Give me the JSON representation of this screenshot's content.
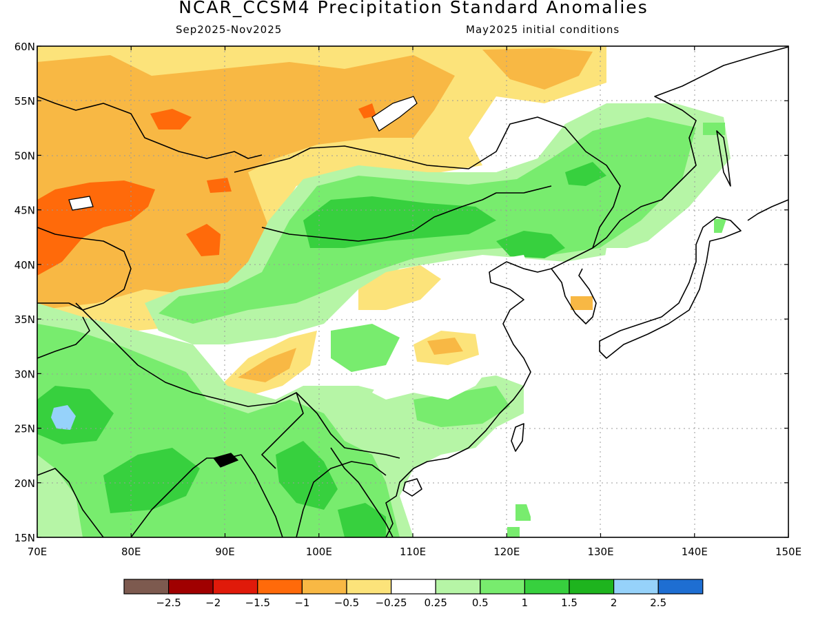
{
  "title": "NCAR_CCSM4 Precipitation Standard Anomalies",
  "period": "Sep2025-Nov2025",
  "init": "May2025 initial conditions",
  "map": {
    "lon_ticks": [
      "70E",
      "80E",
      "90E",
      "100E",
      "110E",
      "120E",
      "130E",
      "140E",
      "150E"
    ],
    "lat_ticks": [
      "60N",
      "55N",
      "50N",
      "45N",
      "40N",
      "35N",
      "30N",
      "25N",
      "20N",
      "15N"
    ]
  },
  "legend": {
    "colors": [
      "#7d5a4f",
      "#a00000",
      "#e01a0a",
      "#ff6a0a",
      "#f8b844",
      "#fce37a",
      "#ffffff",
      "#b6f5a6",
      "#78ec6e",
      "#37d03e",
      "#1eb41e",
      "#96d2fa",
      "#1e6ed2"
    ],
    "labels": [
      "−2.5",
      "−2",
      "−1.5",
      "−1",
      "−0.5",
      "−0.25",
      "0.25",
      "0.5",
      "1",
      "1.5",
      "2",
      "2.5"
    ]
  }
}
